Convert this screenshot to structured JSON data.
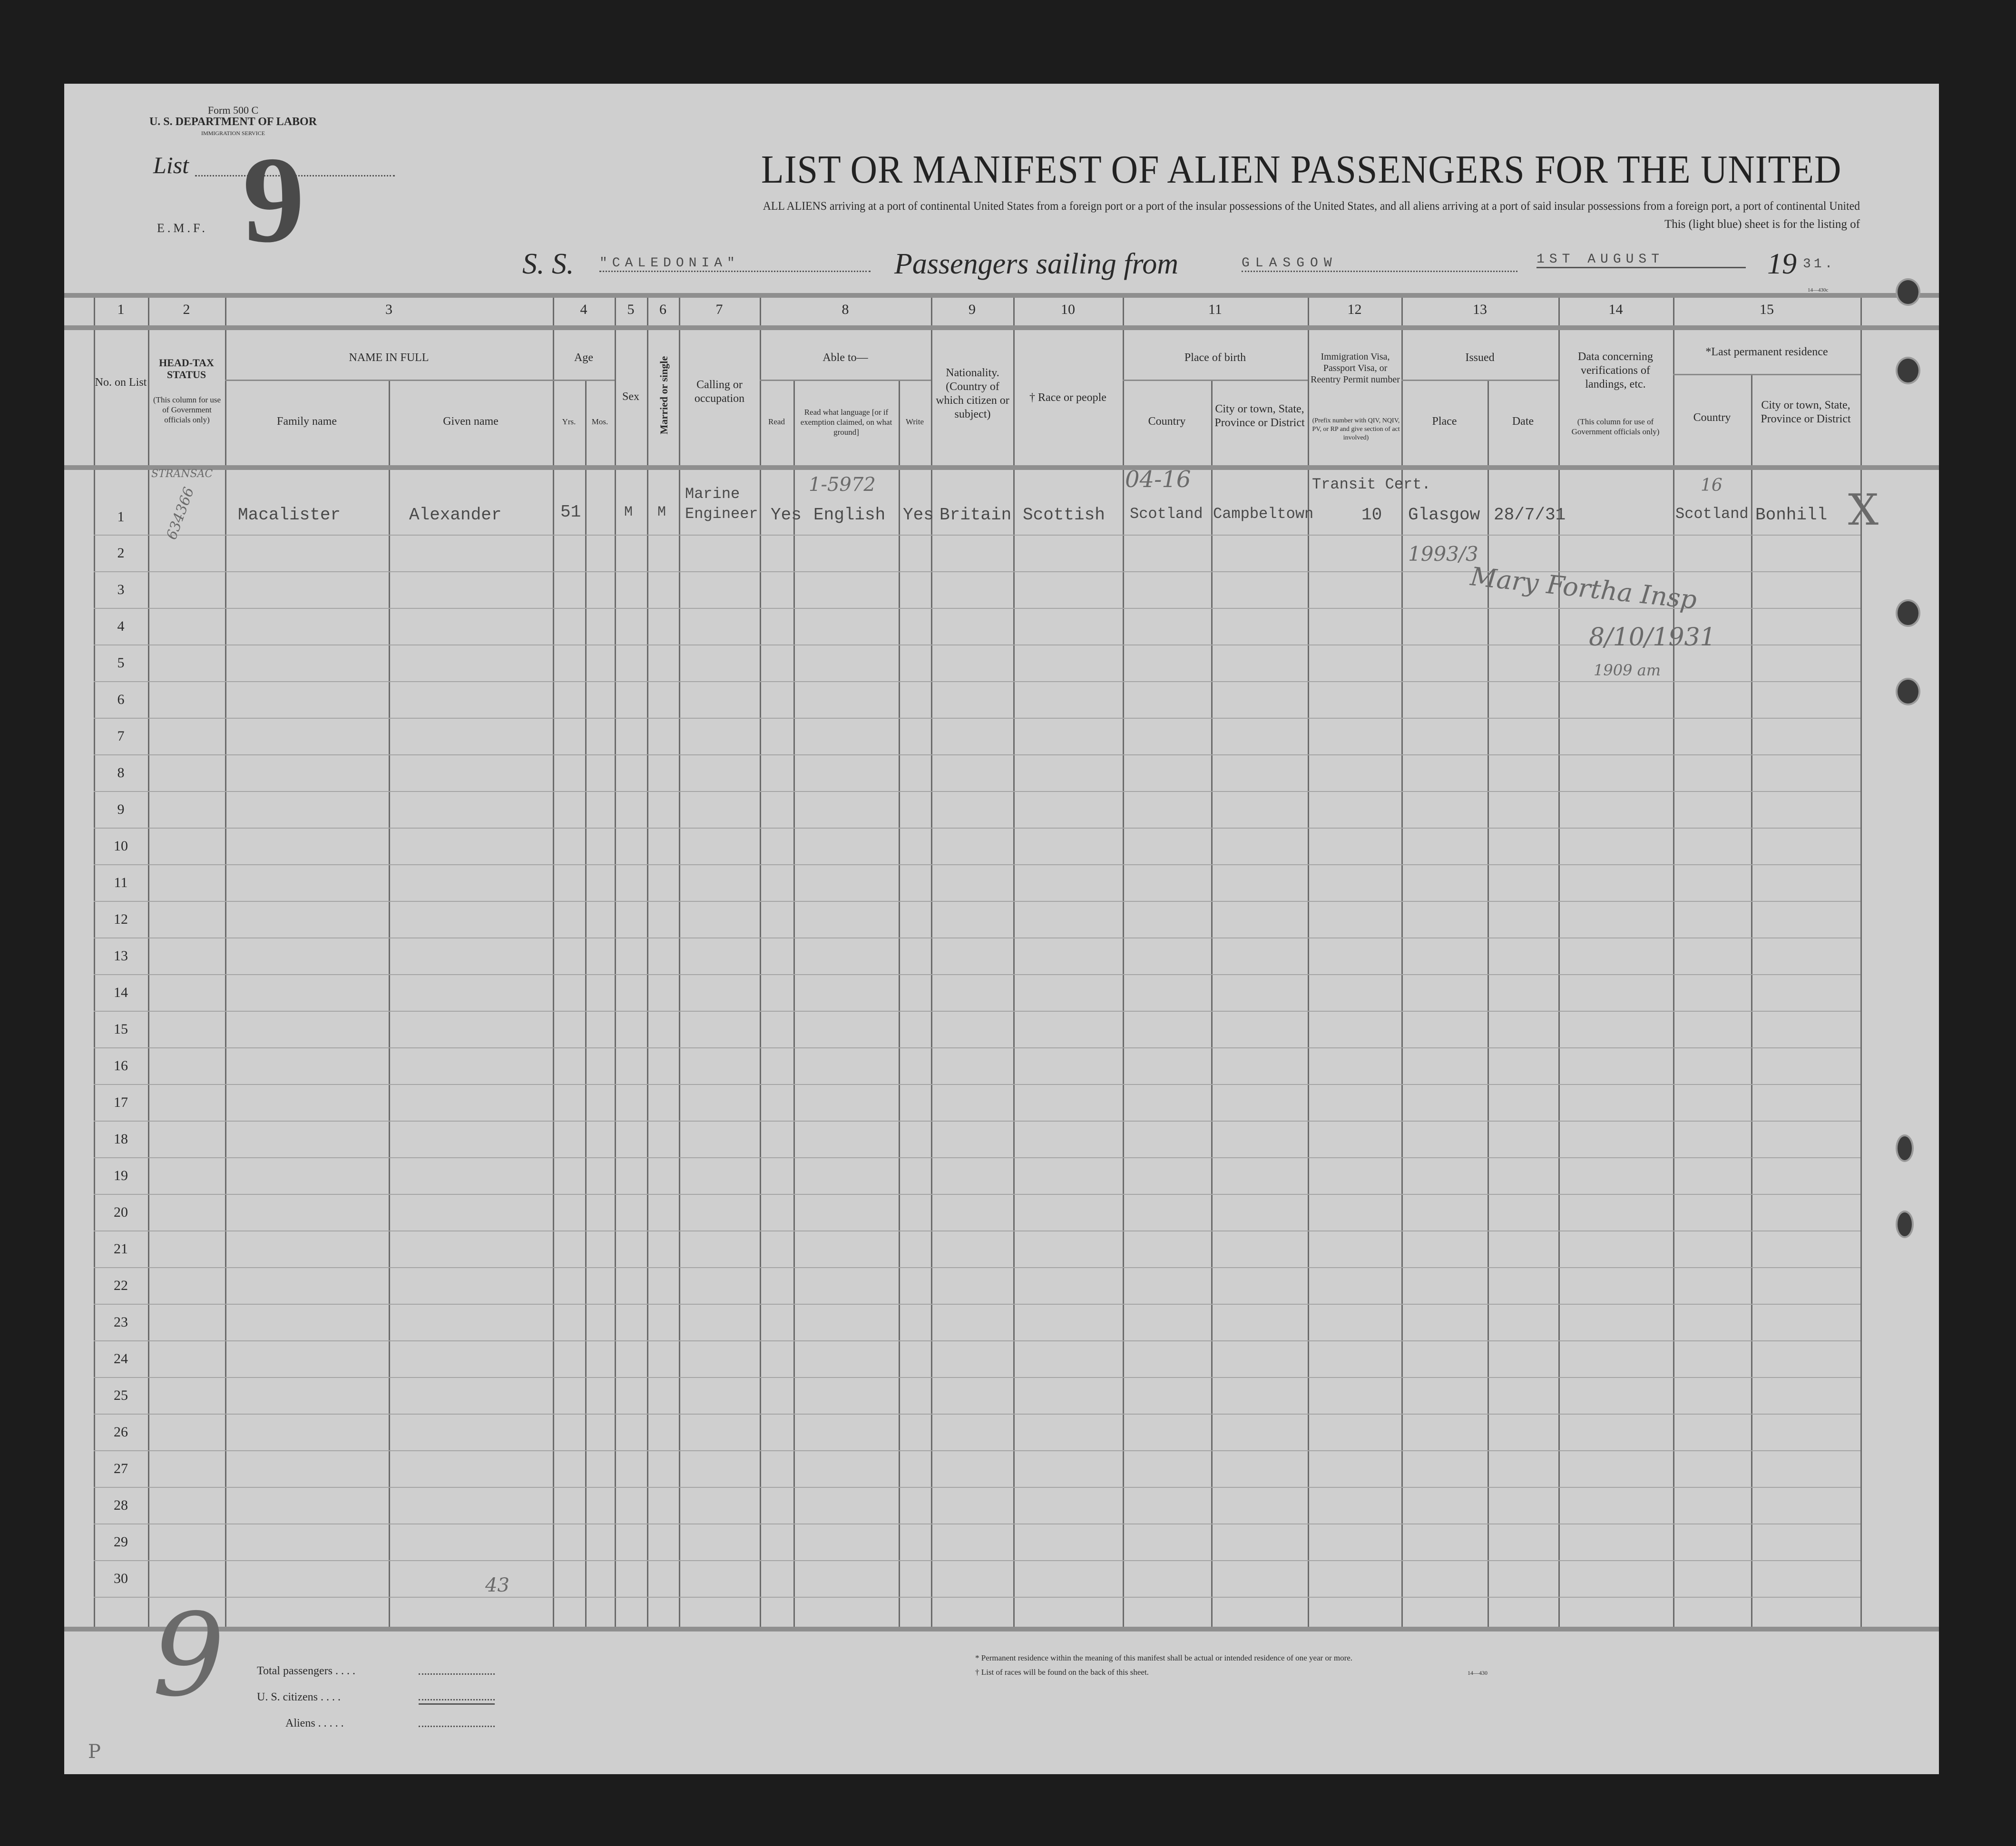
{
  "form": {
    "form_no": "Form 500 C",
    "department": "U. S. DEPARTMENT OF LABOR",
    "service": "IMMIGRATION SERVICE",
    "list_label": "List",
    "list_number": "9",
    "emf": "E.M.F."
  },
  "title": "LIST OR MANIFEST OF ALIEN PASSENGERS FOR THE UNITED",
  "subtitle_line1": "ALL ALIENS arriving at a port of continental United States from a foreign port or a port of the insular possessions of the United States, and all aliens arriving at a port of said insular possessions from a foreign port, a port of continental United",
  "subtitle_line2": "This (light blue) sheet is for the listing of",
  "voyage": {
    "ss_label": "S. S.",
    "ship": "\"CALEDONIA\"",
    "sailing_label": "Passengers sailing from",
    "port": "GLASGOW",
    "date": "1ST AUGUST",
    "year_prefix": "19",
    "year_suffix": "31."
  },
  "form_code_top": "14—430c",
  "column_numbers": [
    "1",
    "2",
    "3",
    "4",
    "5",
    "6",
    "7",
    "8",
    "9",
    "10",
    "11",
    "12",
    "13",
    "14",
    "15"
  ],
  "headers": {
    "no_on_list": "No. on List",
    "head_tax": "HEAD-TAX STATUS",
    "head_tax_note": "(This column for use of Government officials only)",
    "name_in_full": "NAME IN FULL",
    "family_name": "Family name",
    "given_name": "Given name",
    "age": "Age",
    "yrs": "Yrs.",
    "mos": "Mos.",
    "sex": "Sex",
    "married": "Married or single",
    "calling": "Calling or occupation",
    "able_to": "Able to—",
    "read": "Read",
    "read_what": "Read what language [or if exemption claimed, on what ground]",
    "write": "Write",
    "nationality": "Nationality. (Country of which citizen or subject)",
    "race": "† Race or people",
    "place_of_birth": "Place of birth",
    "pob_country": "Country",
    "pob_city": "City or town, State, Province or District",
    "visa": "Immigration Visa, Passport Visa, or Reentry Permit number",
    "visa_note": "(Prefix number with QIV, NQIV, PV, or RP and give section of act involved)",
    "issued": "Issued",
    "issued_place": "Place",
    "issued_date": "Date",
    "data_concerning": "Data concerning verifications of landings, etc.",
    "data_note": "(This column for use of Government officials only)",
    "last_residence": "*Last permanent residence",
    "res_country": "Country",
    "res_city": "City or town, State, Province or District"
  },
  "row_numbers": [
    "1",
    "2",
    "3",
    "4",
    "5",
    "6",
    "7",
    "8",
    "9",
    "10",
    "11",
    "12",
    "13",
    "14",
    "15",
    "16",
    "17",
    "18",
    "19",
    "20",
    "21",
    "22",
    "23",
    "24",
    "25",
    "26",
    "27",
    "28",
    "29",
    "30"
  ],
  "passenger": {
    "family_name": "Macalister",
    "given_name": "Alexander",
    "age_yrs": "51",
    "sex": "M",
    "married": "M",
    "occupation_1": "Marine",
    "occupation_2": "Engineer",
    "read": "Yes",
    "language": "English",
    "write": "Yes",
    "nationality": "Britain",
    "race": "Scottish",
    "birth_country": "Scotland",
    "birth_city": "Campbeltown",
    "visa_line1": "Transit Cert.",
    "visa_number": "10",
    "issued_place": "Glasgow",
    "issued_date": "28/7/31",
    "res_country": "Scotland",
    "res_city": "Bonhill"
  },
  "annotations": {
    "head_tax_stamp": "STRANSAC",
    "head_tax_number": "634366",
    "language_note": "1-5972",
    "birth_note": "04-16",
    "issued_note": "1993/3",
    "signature": "Mary Fortha Insp",
    "sig_date": "8/10/1931",
    "sig_note": "1909 am",
    "res_note": "16",
    "margin_x": "X",
    "bottom_mark": "43",
    "margin_nine": "9",
    "corner_p": "P"
  },
  "footer": {
    "total_passengers": "Total passengers . . . .",
    "us_citizens": "U. S. citizens . . . .",
    "aliens": "Aliens . . . . .",
    "note1": "* Permanent residence within the meaning of this manifest shall be actual or intended residence of one year or more.",
    "note2": "† List of races will be found on the back of this sheet.",
    "code": "14—430"
  }
}
